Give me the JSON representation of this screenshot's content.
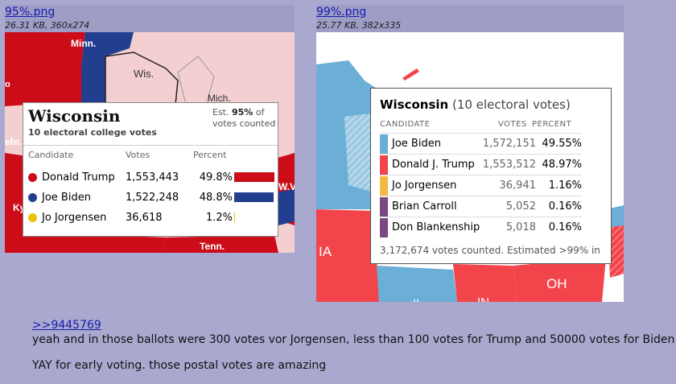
{
  "files": [
    {
      "name": "95%.png",
      "meta": "26.31 KB, 360x274",
      "map_labels": [
        "Minn.",
        "Wis.",
        "Mich.",
        "ebr.",
        "W.Va.",
        "Ky.",
        "Tenn.",
        "Ia",
        "o"
      ],
      "card": {
        "title": "Wisconsin",
        "subtitle": "10 electoral college votes",
        "est_prefix": "Est.",
        "est_value": "95%",
        "est_suffix": "of votes counted",
        "headers": {
          "candidate": "Candidate",
          "votes": "Votes",
          "percent": "Percent"
        },
        "rows": [
          {
            "name": "Donald Trump",
            "votes": "1,553,443",
            "percent": "49.8%",
            "share": 0.498,
            "color": "#cc0d19"
          },
          {
            "name": "Joe Biden",
            "votes": "1,522,248",
            "percent": "48.8%",
            "share": 0.488,
            "color": "#223f8f"
          },
          {
            "name": "Jo Jorgensen",
            "votes": "36,618",
            "percent": "1.2%",
            "share": 0.012,
            "color": "#e8c20a"
          }
        ]
      }
    },
    {
      "name": "99%.png",
      "meta": "25.77 KB, 382x335",
      "map_labels": [
        "IA",
        "OH",
        "IN",
        "IL"
      ],
      "card": {
        "title": "Wisconsin",
        "subtitle": "(10 electoral votes)",
        "headers": {
          "candidate": "CANDIDATE",
          "votes": "VOTES",
          "percent": "PERCENT"
        },
        "rows": [
          {
            "name": "Joe Biden",
            "votes": "1,572,151",
            "percent": "49.55%",
            "color": "#6baed6"
          },
          {
            "name": "Donald J. Trump",
            "votes": "1,553,512",
            "percent": "48.97%",
            "color": "#f2444b"
          },
          {
            "name": "Jo Jorgensen",
            "votes": "36,941",
            "percent": "1.16%",
            "color": "#f4b942"
          },
          {
            "name": "Brian Carroll",
            "votes": "5,052",
            "percent": "0.16%",
            "color": "#7b4a80"
          },
          {
            "name": "Don Blankenship",
            "votes": "5,018",
            "percent": "0.16%",
            "color": "#7b4a80"
          }
        ],
        "footer": "3,172,674 votes counted. Estimated >99% in"
      }
    }
  ],
  "post": {
    "quote_link": ">>9445769",
    "line1": "yeah and in those ballots were 300 votes vor Jorgensen, less than 100 votes for Trump and 50000 votes for Biden",
    "line2": "YAY for early voting. those postal votes are amazing"
  },
  "colors": {
    "background": "#a9a9cf",
    "header": "#9d9dc6",
    "link": "#1a1ab0",
    "red": "#cc0d19",
    "blue": "#223f8f"
  }
}
